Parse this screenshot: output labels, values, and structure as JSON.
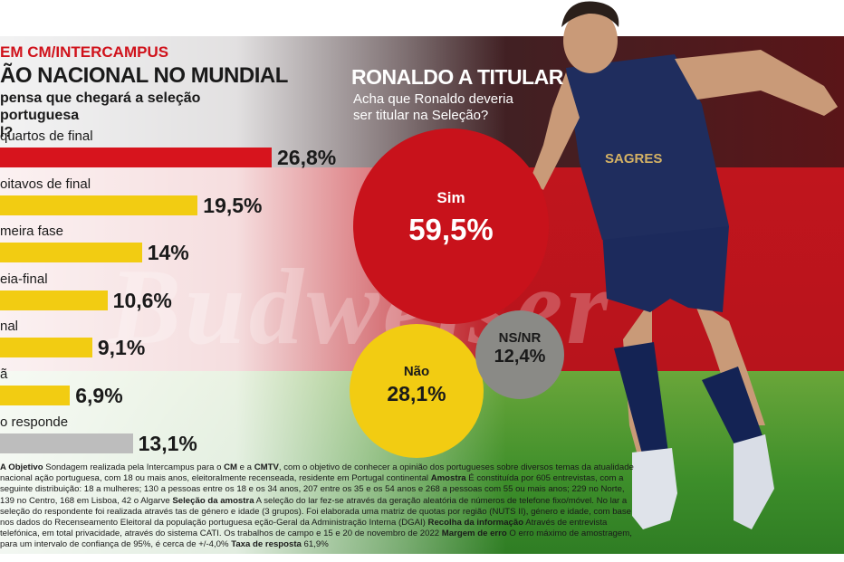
{
  "header": {
    "source": "EM CM/INTERCAMPUS",
    "title_left": "ÃO NACIONAL NO MUNDIAL",
    "question_left": "pensa que chegará a seleção portuguesa\nl?",
    "title_right": "RONALDO A TITULAR",
    "question_right": "Acha que Ronaldo deveria\nser titular na Seleção?"
  },
  "chart_data": [
    {
      "type": "bar",
      "orientation": "horizontal",
      "title": "ÃO NACIONAL NO MUNDIAL",
      "categories": [
        "quartos de final",
        "oitavos de final",
        "meira fase",
        "eia-final",
        "nal",
        "ã",
        "o responde"
      ],
      "values": [
        26.8,
        19.5,
        14,
        10.6,
        9.1,
        6.9,
        13.1
      ],
      "value_labels": [
        "26,8%",
        "19,5%",
        "14%",
        "10,6%",
        "9,1%",
        "6,9%",
        "13,1%"
      ],
      "colors": [
        "#d7141d",
        "#f2cc12",
        "#f2cc12",
        "#f2cc12",
        "#f2cc12",
        "#f2cc12",
        "#bdbdbd"
      ],
      "xlim": [
        0,
        30
      ],
      "grid": false
    },
    {
      "type": "bubble",
      "title": "RONALDO A TITULAR",
      "categories": [
        "Sim",
        "Não",
        "NS/NR"
      ],
      "values": [
        59.5,
        28.1,
        12.4
      ],
      "value_labels": [
        "59,5%",
        "28,1%",
        "12,4%"
      ],
      "colors": [
        "#c8121b",
        "#f2cc12",
        "#8a8a86"
      ]
    }
  ],
  "player": {
    "sponsor": "SAGRES"
  },
  "footnote": {
    "parts": [
      {
        "b": true,
        "t": "A Objetivo"
      },
      {
        "b": false,
        "t": " Sondagem realizada pela Intercampus para o "
      },
      {
        "b": true,
        "t": "CM"
      },
      {
        "b": false,
        "t": " e a "
      },
      {
        "b": true,
        "t": "CMTV"
      },
      {
        "b": false,
        "t": ", com o objetivo de conhecer a opinião dos portugueses sobre diversos temas da atualidade nacional ação portuguesa, com 18 ou mais anos, eleitoralmente recenseada, residente em Portugal continental "
      },
      {
        "b": true,
        "t": "Amostra"
      },
      {
        "b": false,
        "t": " É constituída por 605 entrevistas, com a seguinte distribuição: 18 a mulheres; 130 a pessoas entre os 18 e os 34 anos, 207 entre os 35 e os 54 anos e 268 a pessoas com 55 ou mais anos; 229 no Norte, 139 no Centro, 168 em Lisboa, 42 o Algarve "
      },
      {
        "b": true,
        "t": "Seleção da amostra"
      },
      {
        "b": false,
        "t": " A seleção do lar fez-se através da geração aleatória de números de telefone fixo/móvel. No lar a seleção do respondente foi realizada através tas de género e idade (3 grupos). Foi elaborada uma matriz de quotas por região (NUTS II), género e idade, com base nos dados do Recenseamento Eleitoral da população portuguesa eção-Geral da Administração Interna (DGAI) "
      },
      {
        "b": true,
        "t": "Recolha da informação"
      },
      {
        "b": false,
        "t": " Através de entrevista telefónica, em total privacidade, através do sistema CATI. Os trabalhos de campo e 15 e 20 de novembro de 2022 "
      },
      {
        "b": true,
        "t": "Margem de erro"
      },
      {
        "b": false,
        "t": " O erro máximo de amostragem, para um intervalo de confiança de 95%, é cerca de +/-4,0% "
      },
      {
        "b": true,
        "t": "Taxa de resposta"
      },
      {
        "b": false,
        "t": " 61,9%"
      }
    ]
  }
}
